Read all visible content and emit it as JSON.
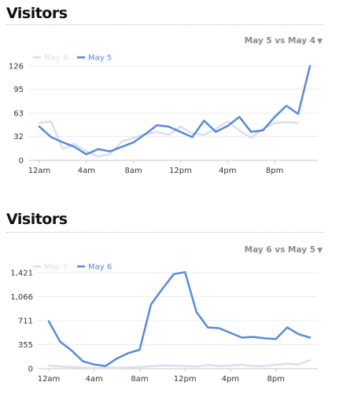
{
  "panels": [
    {
      "title": "Visitors",
      "compare_label": "May 5 vs May 4",
      "compare_chevron": "▼",
      "chart_data": {
        "type": "line",
        "x": [
          "12am",
          "1am",
          "2am",
          "3am",
          "4am",
          "5am",
          "6am",
          "7am",
          "8am",
          "9am",
          "10am",
          "11am",
          "12pm",
          "1pm",
          "2pm",
          "3pm",
          "4pm",
          "5pm",
          "6pm",
          "7pm",
          "8pm",
          "9pm",
          "10pm",
          "11pm"
        ],
        "xticks": [
          "12am",
          "4am",
          "8am",
          "12pm",
          "4pm",
          "8pm"
        ],
        "yticks": [
          0,
          32,
          63,
          95,
          126
        ],
        "ytick_labels": [
          "0",
          "32",
          "63",
          "95",
          "126"
        ],
        "ylim": [
          0,
          126
        ],
        "grid": true,
        "legend_position": "top-left",
        "series": [
          {
            "name": "May 4",
            "color": "#dcdcf4",
            "values": [
              50,
              52,
              15,
              22,
              12,
              5,
              8,
              25,
              30,
              35,
              38,
              34,
              45,
              36,
              34,
              42,
              52,
              40,
              30,
              42,
              50,
              51,
              50,
              null
            ]
          },
          {
            "name": "May 5",
            "color": "#5a8ad6",
            "values": [
              45,
              31,
              24,
              18,
              8,
              15,
              12,
              18,
              24,
              35,
              47,
              45,
              38,
              31,
              53,
              38,
              46,
              58,
              38,
              40,
              58,
              73,
              62,
              126
            ]
          }
        ]
      }
    },
    {
      "title": "Visitors",
      "compare_label": "May 6 vs May 5",
      "compare_chevron": "▼",
      "chart_data": {
        "type": "line",
        "x": [
          "12am",
          "1am",
          "2am",
          "3am",
          "4am",
          "5am",
          "6am",
          "7am",
          "8am",
          "9am",
          "10am",
          "11am",
          "12pm",
          "1pm",
          "2pm",
          "3pm",
          "4pm",
          "5pm",
          "6pm",
          "7pm",
          "8pm",
          "9pm",
          "10pm",
          "11pm"
        ],
        "xticks": [
          "12am",
          "4am",
          "8am",
          "12pm",
          "4pm",
          "8pm"
        ],
        "yticks": [
          0,
          355,
          711,
          1066,
          1421
        ],
        "ytick_labels": [
          "0",
          "355",
          "711",
          "1,066",
          "1,421"
        ],
        "ylim": [
          0,
          1421
        ],
        "grid": true,
        "legend_position": "top-left",
        "series": [
          {
            "name": "May 5",
            "color": "#dcdcf4",
            "values": [
              45,
              31,
              24,
              18,
              8,
              15,
              12,
              18,
              24,
              35,
              47,
              45,
              38,
              31,
              53,
              38,
              46,
              58,
              38,
              40,
              58,
              73,
              62,
              126
            ]
          },
          {
            "name": "May 6",
            "color": "#5a8ad6",
            "values": [
              700,
              400,
              270,
              110,
              60,
              40,
              150,
              230,
              280,
              950,
              1180,
              1400,
              1430,
              840,
              610,
              600,
              530,
              460,
              470,
              450,
              440,
              610,
              510,
              460
            ]
          }
        ]
      }
    }
  ]
}
